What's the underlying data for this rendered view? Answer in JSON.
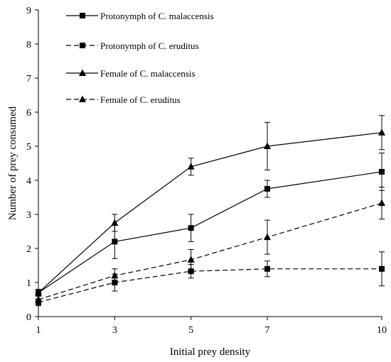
{
  "chart_data": {
    "type": "line",
    "title": "",
    "xlabel": "Initial prey density",
    "ylabel": "Number of prey consumed",
    "x": [
      1,
      3,
      5,
      7,
      10
    ],
    "xticks": [
      "1",
      "3",
      "5",
      "7",
      "10"
    ],
    "yticks": [
      "0",
      "1",
      "2",
      "3",
      "4",
      "5",
      "6",
      "7",
      "8",
      "9"
    ],
    "ylim": [
      0,
      9
    ],
    "grid": false,
    "legend_position": "top-left",
    "series": [
      {
        "name": "Protonymph of C. malaccensis",
        "marker": "square",
        "line": "solid",
        "values": [
          0.7,
          2.2,
          2.6,
          3.75,
          4.25
        ],
        "errors": [
          0.1,
          0.5,
          0.4,
          0.25,
          0.55
        ]
      },
      {
        "name": "Protonymph of C. eruditus",
        "marker": "square",
        "line": "dashed",
        "values": [
          0.42,
          1.0,
          1.33,
          1.4,
          1.4
        ],
        "errors": [
          0.1,
          0.25,
          0.2,
          0.23,
          0.5
        ]
      },
      {
        "name": "Female of C. malaccensis",
        "marker": "triangle",
        "line": "solid",
        "values": [
          0.7,
          2.75,
          4.4,
          5.0,
          5.4
        ],
        "errors": [
          0.1,
          0.25,
          0.25,
          0.7,
          0.5
        ]
      },
      {
        "name": "Female of C. eruditus",
        "marker": "triangle",
        "line": "dashed",
        "values": [
          0.5,
          1.2,
          1.67,
          2.33,
          3.33
        ],
        "errors": [
          0.1,
          0.2,
          0.3,
          0.5,
          0.47
        ]
      }
    ]
  }
}
